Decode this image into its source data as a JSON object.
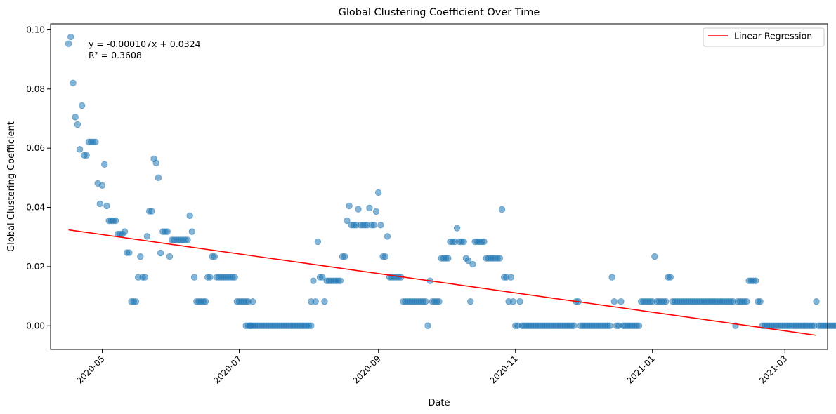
{
  "chart_data": {
    "type": "scatter",
    "title": "Global Clustering Coefficient Over Time",
    "xlabel": "Date",
    "ylabel": "Global Clustering Coefficient",
    "x_range": [
      "2020-04-08",
      "2021-03-20"
    ],
    "ylim": [
      -0.008,
      0.102
    ],
    "x_ticks": [
      "2020-05",
      "2020-07",
      "2020-09",
      "2020-11",
      "2021-01",
      "2021-03"
    ],
    "y_ticks": [
      "0.00",
      "0.02",
      "0.04",
      "0.06",
      "0.08",
      "0.10"
    ],
    "grid": false,
    "legend": {
      "position": "top-right",
      "entries": [
        "Linear Regression"
      ]
    },
    "annotation": {
      "line1": "y = -0.000107x + 0.0324",
      "line2": "R² = 0.3608"
    },
    "regression": {
      "name": "Linear Regression",
      "color": "#ff0000",
      "slope": -0.000107,
      "intercept": 0.0324,
      "x_start": "2020-04-16",
      "x_end": "2021-03-15"
    },
    "scatter_color": "#1f77b4",
    "point_segments": [
      {
        "start": "2020-04-16",
        "values": [
          0.0953,
          0.0976,
          0.082,
          0.0705,
          0.068,
          0.0596,
          0.0744,
          0.0576,
          0.0576,
          0.0621,
          0.0621,
          0.0621,
          0.0621,
          0.0481,
          0.0412,
          0.0474,
          0.0545,
          0.0405,
          0.0355,
          0.0355,
          0.0355,
          0.0355,
          0.031,
          0.031,
          0.031,
          0.0318,
          0.0247,
          0.0247,
          0.0082,
          0.0082,
          0.0082,
          0.0164,
          0.0234,
          0.0164,
          0.0164,
          0.0302,
          0.0387,
          0.0387,
          0.0564,
          0.055,
          0.05,
          0.0246,
          0.0318,
          0.0318,
          0.0318,
          0.0234,
          0.029,
          0.029,
          0.029,
          0.029,
          0.029,
          0.029,
          0.029,
          0.029,
          0.0372,
          0.0318,
          0.0164,
          0.0082,
          0.0082,
          0.0082,
          0.0082,
          0.0082,
          0.0164,
          0.0164,
          0.0234,
          0.0234,
          0.0164,
          0.0164,
          0.0164,
          0.0164,
          0.0164,
          0.0164,
          0.0164,
          0.0164,
          0.0164,
          0.0082,
          0.0082,
          0.0082,
          0.0082,
          0.0082,
          0.0082,
          0.0,
          0.0082
        ]
      },
      {
        "start": "2020-07-04",
        "count": 30,
        "value": 0.0
      },
      {
        "start": "2020-08-02",
        "values": [
          0.0082,
          0.0152,
          0.0082,
          0.0284,
          0.0164,
          0.0164,
          0.0082,
          0.0152,
          0.0152,
          0.0152,
          0.0152,
          0.0152,
          0.0152,
          0.0152,
          0.0234,
          0.0234,
          0.0355,
          0.0405,
          0.034,
          0.034,
          0.034,
          0.0394,
          0.034,
          0.034,
          0.034,
          0.034,
          0.0398,
          0.034,
          0.034,
          0.0386,
          0.045,
          0.034,
          0.0234,
          0.0234,
          0.0302,
          0.0164,
          0.0164,
          0.0164,
          0.0164,
          0.0164,
          0.0164,
          0.0082,
          0.0082,
          0.0082,
          0.0082,
          0.0082,
          0.0082,
          0.0082,
          0.0082,
          0.0082,
          0.0082,
          0.0082,
          0.0,
          0.0152,
          0.0082,
          0.0082,
          0.0082,
          0.0082,
          0.0228,
          0.0228,
          0.0228,
          0.0228,
          0.0284,
          0.0284,
          0.0284,
          0.033,
          0.0284,
          0.0284,
          0.0284,
          0.0228,
          0.022,
          0.0082,
          0.0208,
          0.0284,
          0.0284,
          0.0284,
          0.0284,
          0.0284,
          0.0228,
          0.0228,
          0.0228,
          0.0228,
          0.0228,
          0.0228,
          0.0228,
          0.0393,
          0.0164,
          0.0164,
          0.0082,
          0.0164,
          0.0082,
          0.0,
          0.0,
          0.0082
        ]
      },
      {
        "start": "2020-11-04",
        "count": 24,
        "value": 0.0
      },
      {
        "start": "2020-11-28",
        "values": [
          0.0082,
          0.0082
        ]
      },
      {
        "start": "2020-11-30",
        "count": 14,
        "value": 0.0
      },
      {
        "start": "2020-12-14",
        "values": [
          0.0164,
          0.0082,
          0.0,
          0.0,
          0.0082,
          0.0,
          0.0,
          0.0,
          0.0,
          0.0,
          0.0,
          0.0,
          0.0,
          0.0082,
          0.0082,
          0.0082,
          0.0082,
          0.0082,
          0.0082,
          0.0234,
          0.0082,
          0.0082,
          0.0082,
          0.0082,
          0.0082,
          0.0164,
          0.0164,
          0.0082
        ]
      },
      {
        "start": "2021-01-11",
        "count": 27,
        "value": 0.0082
      },
      {
        "start": "2021-02-07",
        "values": [
          0.0,
          0.0082,
          0.0082,
          0.0082,
          0.0082,
          0.0082,
          0.0152,
          0.0152,
          0.0152,
          0.0152,
          0.0082,
          0.0082
        ]
      },
      {
        "start": "2021-02-19",
        "count": 24,
        "value": 0.0
      },
      {
        "start": "2021-03-15",
        "values": [
          0.0082
        ]
      },
      {
        "start": "2021-03-16",
        "count": 12,
        "value": 0.0
      }
    ]
  }
}
